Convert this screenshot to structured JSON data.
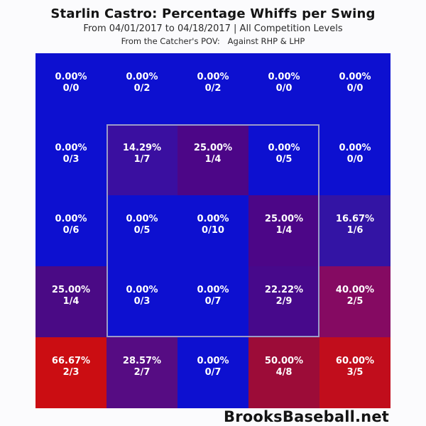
{
  "header": {
    "title": "Starlin Castro: Percentage Whiffs per Swing",
    "subtitle": "From 04/01/2017 to 04/18/2017 | All Competition Levels",
    "pov_line": "From the Catcher's POV:   Against RHP & LHP"
  },
  "footer": {
    "brand": "BrooksBaseball.net"
  },
  "chart_data": {
    "type": "heatmap",
    "title": "Starlin Castro: Percentage Whiffs per Swing",
    "subtitle": "From 04/01/2017 to 04/18/2017 | All Competition Levels",
    "pov": "From the Catcher's POV: Against RHP & LHP",
    "metric": "Percentage whiffs per swing (whiffs/swings)",
    "rows": 5,
    "cols": 5,
    "legend": "none (color encodes whiff %, blue=0% to red=high)",
    "color_scale": {
      "low_color": "#0d10d0",
      "high_color": "#cb0d12",
      "domain_pct": [
        0,
        100
      ]
    },
    "strike_zone_outline": {
      "row_start": 2,
      "row_end": 4,
      "col_start": 2,
      "col_end": 4,
      "border_color": "#9b9bc8"
    },
    "cells": [
      [
        {
          "pct": "0.00%",
          "frac": "0/0",
          "value": 0,
          "whiffs": 0,
          "swings": 0,
          "color": "#0d10d0"
        },
        {
          "pct": "0.00%",
          "frac": "0/2",
          "value": 0,
          "whiffs": 0,
          "swings": 2,
          "color": "#0d10d0"
        },
        {
          "pct": "0.00%",
          "frac": "0/2",
          "value": 0,
          "whiffs": 0,
          "swings": 2,
          "color": "#0d10d0"
        },
        {
          "pct": "0.00%",
          "frac": "0/0",
          "value": 0,
          "whiffs": 0,
          "swings": 0,
          "color": "#0d10d0"
        },
        {
          "pct": "0.00%",
          "frac": "0/0",
          "value": 0,
          "whiffs": 0,
          "swings": 0,
          "color": "#0d10d0"
        }
      ],
      [
        {
          "pct": "0.00%",
          "frac": "0/3",
          "value": 0,
          "whiffs": 0,
          "swings": 3,
          "color": "#0d10d0"
        },
        {
          "pct": "14.29%",
          "frac": "1/7",
          "value": 14.29,
          "whiffs": 1,
          "swings": 7,
          "color": "#3a0fa0"
        },
        {
          "pct": "25.00%",
          "frac": "1/4",
          "value": 25.0,
          "whiffs": 1,
          "swings": 4,
          "color": "#4c0687"
        },
        {
          "pct": "0.00%",
          "frac": "0/5",
          "value": 0,
          "whiffs": 0,
          "swings": 5,
          "color": "#0d10d0"
        },
        {
          "pct": "0.00%",
          "frac": "0/0",
          "value": 0,
          "whiffs": 0,
          "swings": 0,
          "color": "#0d10d0"
        }
      ],
      [
        {
          "pct": "0.00%",
          "frac": "0/6",
          "value": 0,
          "whiffs": 0,
          "swings": 6,
          "color": "#0d10d0"
        },
        {
          "pct": "0.00%",
          "frac": "0/5",
          "value": 0,
          "whiffs": 0,
          "swings": 5,
          "color": "#0d10d0"
        },
        {
          "pct": "0.00%",
          "frac": "0/10",
          "value": 0,
          "whiffs": 0,
          "swings": 10,
          "color": "#0d10d0"
        },
        {
          "pct": "25.00%",
          "frac": "1/4",
          "value": 25.0,
          "whiffs": 1,
          "swings": 4,
          "color": "#4c0687"
        },
        {
          "pct": "16.67%",
          "frac": "1/6",
          "value": 16.67,
          "whiffs": 1,
          "swings": 6,
          "color": "#3314a4"
        }
      ],
      [
        {
          "pct": "25.00%",
          "frac": "1/4",
          "value": 25.0,
          "whiffs": 1,
          "swings": 4,
          "color": "#4a0a85"
        },
        {
          "pct": "0.00%",
          "frac": "0/3",
          "value": 0,
          "whiffs": 0,
          "swings": 3,
          "color": "#0d10d0"
        },
        {
          "pct": "0.00%",
          "frac": "0/7",
          "value": 0,
          "whiffs": 0,
          "swings": 7,
          "color": "#0d10d0"
        },
        {
          "pct": "22.22%",
          "frac": "2/9",
          "value": 22.22,
          "whiffs": 2,
          "swings": 9,
          "color": "#47098b"
        },
        {
          "pct": "40.00%",
          "frac": "2/5",
          "value": 40.0,
          "whiffs": 2,
          "swings": 5,
          "color": "#850a62"
        }
      ],
      [
        {
          "pct": "66.67%",
          "frac": "2/3",
          "value": 66.67,
          "whiffs": 2,
          "swings": 3,
          "color": "#cb0d12"
        },
        {
          "pct": "28.57%",
          "frac": "2/7",
          "value": 28.57,
          "whiffs": 2,
          "swings": 7,
          "color": "#560c83"
        },
        {
          "pct": "0.00%",
          "frac": "0/7",
          "value": 0,
          "whiffs": 0,
          "swings": 7,
          "color": "#0d10d0"
        },
        {
          "pct": "50.00%",
          "frac": "4/8",
          "value": 50.0,
          "whiffs": 4,
          "swings": 8,
          "color": "#9c0c38"
        },
        {
          "pct": "60.00%",
          "frac": "3/5",
          "value": 60.0,
          "whiffs": 3,
          "swings": 5,
          "color": "#c10d1c"
        }
      ]
    ]
  }
}
